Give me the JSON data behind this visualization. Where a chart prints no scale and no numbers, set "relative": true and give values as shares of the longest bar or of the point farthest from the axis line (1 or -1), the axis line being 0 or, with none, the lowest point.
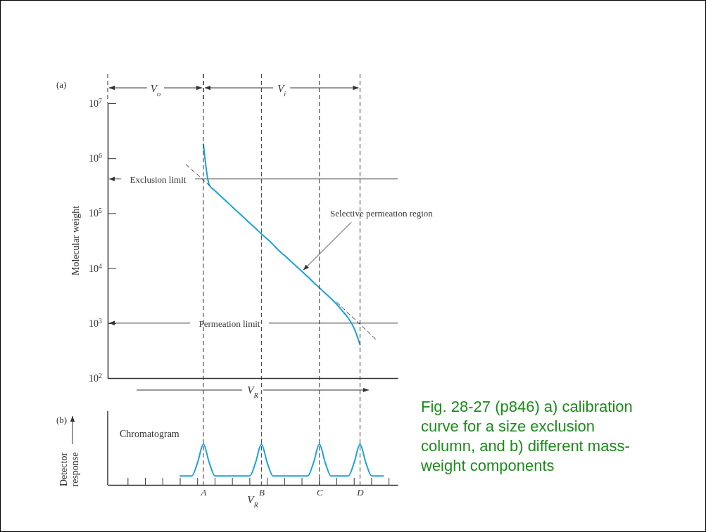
{
  "chart_data": [
    {
      "type": "line",
      "ylabel": "Molecular weight",
      "xlabel": "V$_{R}$",
      "log": "y",
      "ylim": [
        100,
        10000000
      ],
      "yticks": [
        {
          "value": 100,
          "label": "10$^{2}$"
        },
        {
          "value": 1000,
          "label": "10$^{3}$"
        },
        {
          "value": 10000,
          "label": "10$^{4}$"
        },
        {
          "value": 100000,
          "label": "10$^{5}$"
        },
        {
          "value": 1000000,
          "label": "10$^{6}$"
        },
        {
          "value": 10000000,
          "label": "10$^{7}$"
        }
      ],
      "categories": [
        null,
        null,
        null,
        null,
        null,
        null,
        null,
        null,
        null,
        null,
        null,
        null,
        null,
        null,
        null,
        null,
        null,
        null,
        null,
        null,
        null,
        null,
        null,
        null,
        null,
        null,
        null,
        null,
        null,
        null,
        null,
        null,
        null,
        null,
        null,
        null,
        null,
        null,
        null,
        null,
        null,
        null,
        null,
        null,
        null,
        null,
        null,
        null,
        null,
        null
      ],
      "series": [
        {
          "color": "#1ca0dc",
          "values": [
            null,
            null,
            null,
            null,
            null,
            null,
            null,
            null,
            null,
            null,
            null,
            null,
            null,
            null,
            null,
            null,
            1800000,
            330000,
            256000,
            204000,
            163000,
            130000,
            104000,
            83000,
            66000,
            53000,
            42000,
            34000,
            27000,
            21000,
            17000,
            13600,
            10900,
            8700,
            7000,
            5500,
            4400,
            3500,
            2800,
            2200,
            1650,
            1230,
            800,
            410,
            null,
            null,
            null,
            null,
            null,
            null
          ]
        },
        {
          "color": "#333333",
          "line_style": "dashed",
          "values": [
            null,
            null,
            null,
            null,
            null,
            null,
            null,
            null,
            null,
            null,
            null,
            null,
            null,
            770000,
            620000,
            500000,
            400000,
            320000,
            null,
            null,
            null,
            null,
            null,
            null,
            null,
            null,
            null,
            null,
            null,
            null,
            null,
            null,
            null,
            null,
            null,
            null,
            null,
            null,
            null,
            null,
            null,
            null,
            null,
            null,
            null,
            null,
            null,
            null,
            null,
            null
          ]
        },
        {
          "color": "#333333",
          "line_style": "dashed",
          "values": [
            null,
            null,
            null,
            null,
            null,
            null,
            null,
            null,
            null,
            null,
            null,
            null,
            null,
            null,
            null,
            null,
            null,
            null,
            null,
            null,
            null,
            null,
            null,
            null,
            null,
            null,
            null,
            null,
            null,
            null,
            null,
            null,
            null,
            null,
            null,
            null,
            null,
            null,
            null,
            2400,
            1900,
            1500,
            1200,
            950,
            760,
            600,
            480,
            null,
            null,
            null
          ]
        }
      ],
      "ref_lines": [
        {
          "axis": "y",
          "value": 420000,
          "label": "Exclusion limit",
          "color": "#333333"
        },
        {
          "axis": "y",
          "value": 1000,
          "label": "Permeation limit",
          "color": "#333333"
        }
      ],
      "annotations": [
        "(a)",
        "V$_{o}$",
        "V$_{i}$",
        "Selective permeation region"
      ]
    },
    {
      "type": "line",
      "relative": true,
      "xlabel": "V$_{R}$",
      "ylabel": "Detector response",
      "categories": [
        null,
        null,
        null,
        null,
        null,
        null,
        null,
        null,
        null,
        null,
        null,
        null,
        null,
        null,
        null,
        null,
        "A",
        null,
        null,
        null,
        null,
        null,
        null,
        null,
        null,
        null,
        "B",
        null,
        null,
        null,
        null,
        null,
        null,
        null,
        null,
        null,
        "C",
        null,
        null,
        null,
        null,
        null,
        null,
        "D",
        null,
        null,
        null,
        null,
        null,
        null
      ],
      "series": [
        {
          "color": "#1ca0dc",
          "values": [
            null,
            null,
            null,
            null,
            null,
            null,
            null,
            null,
            null,
            null,
            null,
            null,
            0.22,
            0.22,
            0.22,
            0.55,
            1,
            0.55,
            0.22,
            0.22,
            0.22,
            0.22,
            0.22,
            0.22,
            0.22,
            0.55,
            1,
            0.55,
            0.22,
            0.22,
            0.22,
            0.22,
            0.22,
            0.22,
            0.22,
            0.55,
            1,
            0.55,
            0.22,
            0.22,
            0.22,
            0.22,
            0.55,
            1,
            0.55,
            0.22,
            0.22,
            0.22,
            null,
            null
          ]
        }
      ],
      "ref_lines": [
        {
          "axis": "x",
          "value": "A",
          "line_style": "dashed",
          "color": "#333333"
        },
        {
          "axis": "x",
          "value": "B",
          "line_style": "dashed",
          "color": "#333333"
        },
        {
          "axis": "x",
          "value": "C",
          "line_style": "dashed",
          "color": "#333333"
        },
        {
          "axis": "x",
          "value": "D",
          "line_style": "dashed",
          "color": "#333333"
        }
      ],
      "annotations": [
        "(b)",
        "Chromatogram",
        "Fig. 28-27 (p846) a) calibration curve for a size exclusion column, and b) different mass-weight components"
      ]
    }
  ]
}
